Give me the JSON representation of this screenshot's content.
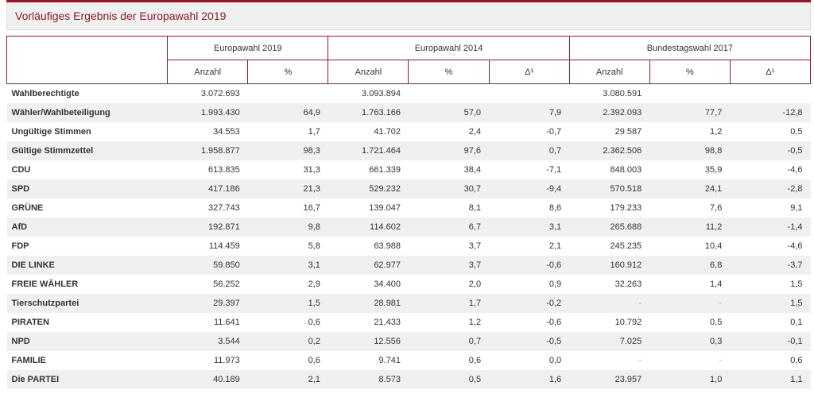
{
  "title": "Vorläufiges Ergebnis der Europawahl 2019",
  "colors": {
    "accent": "#8b1a2b",
    "stripe": "#f0f0f0"
  },
  "groups": [
    "Europawahl 2019",
    "Europawahl 2014",
    "Bundestagswahl 2017"
  ],
  "subheaders": [
    "Anzahl",
    "%",
    "Anzahl",
    "%",
    "Δ¹",
    "Anzahl",
    "%",
    "Δ¹"
  ],
  "rows": [
    [
      "Wahlberechtigte",
      "3.072.693",
      "",
      "3.093.894",
      "",
      "",
      "3.080.591",
      "",
      ""
    ],
    [
      "Wähler/Wahlbeteiligung",
      "1.993.430",
      "64,9",
      "1.763.166",
      "57,0",
      "7,9",
      "2.392.093",
      "77,7",
      "-12,8"
    ],
    [
      "Ungültige Stimmen",
      "34.553",
      "1,7",
      "41.702",
      "2,4",
      "-0,7",
      "29.587",
      "1,2",
      "0,5"
    ],
    [
      "Gültige Stimmzettel",
      "1.958.877",
      "98,3",
      "1.721.464",
      "97,6",
      "0,7",
      "2.362.506",
      "98,8",
      "-0,5"
    ],
    [
      "CDU",
      "613.835",
      "31,3",
      "661.339",
      "38,4",
      "-7,1",
      "848.003",
      "35,9",
      "-4,6"
    ],
    [
      "SPD",
      "417.186",
      "21,3",
      "529.232",
      "30,7",
      "-9,4",
      "570.518",
      "24,1",
      "-2,8"
    ],
    [
      "GRÜNE",
      "327.743",
      "16,7",
      "139.047",
      "8,1",
      "8,6",
      "179.233",
      "7,6",
      "9,1"
    ],
    [
      "AfD",
      "192.871",
      "9,8",
      "114.602",
      "6,7",
      "3,1",
      "265.688",
      "11,2",
      "-1,4"
    ],
    [
      "FDP",
      "114.459",
      "5,8",
      "63.988",
      "3,7",
      "2,1",
      "245.235",
      "10,4",
      "-4,6"
    ],
    [
      "DIE LINKE",
      "59.850",
      "3,1",
      "62.977",
      "3,7",
      "-0,6",
      "160.912",
      "6,8",
      "-3,7"
    ],
    [
      "FREIE WÄHLER",
      "56.252",
      "2,9",
      "34.400",
      "2,0",
      "0,9",
      "32.263",
      "1,4",
      "1,5"
    ],
    [
      "Tierschutzpartei",
      "29.397",
      "1,5",
      "28.981",
      "1,7",
      "-0,2",
      "-",
      "-",
      "1,5"
    ],
    [
      "PIRATEN",
      "11.641",
      "0,6",
      "21.433",
      "1,2",
      "-0,6",
      "10.792",
      "0,5",
      "0,1"
    ],
    [
      "NPD",
      "3.544",
      "0,2",
      "12.556",
      "0,7",
      "-0,5",
      "7.025",
      "0,3",
      "-0,1"
    ],
    [
      "FAMILIE",
      "11.973",
      "0,6",
      "9.741",
      "0,6",
      "0,0",
      "-",
      "-",
      "0,6"
    ],
    [
      "Die PARTEI",
      "40.189",
      "2,1",
      "8.573",
      "0,5",
      "1,6",
      "23.957",
      "1,0",
      "1,1"
    ]
  ]
}
